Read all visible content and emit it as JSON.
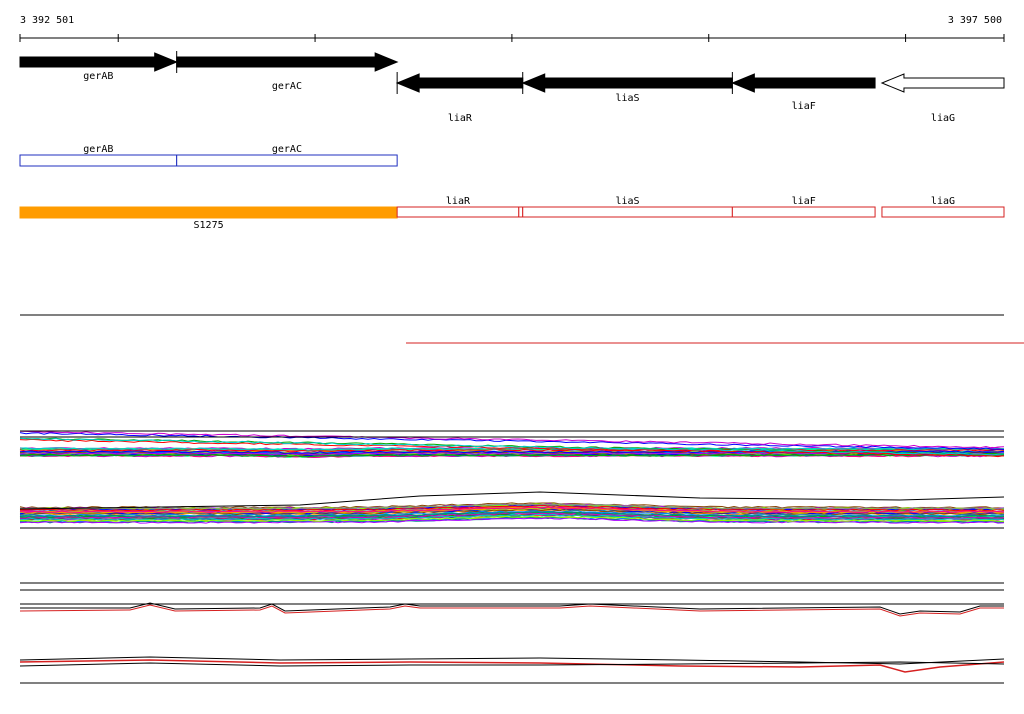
{
  "ruler": {
    "start_label": "3 392 501",
    "end_label": "3 397 500",
    "start": 3392501,
    "end": 3397500
  },
  "colors": {
    "gene": "#000000",
    "gene_outline_only": "#ffffff",
    "blue_track": "#1f2fbf",
    "red_track": "#d62020",
    "highlight": "#ff9c00",
    "line": "#000000"
  },
  "genes": [
    {
      "label": "gerAB",
      "start": 3392501,
      "end": 3393297,
      "strand": "+",
      "filled": true
    },
    {
      "label": "gerAC",
      "start": 3393297,
      "end": 3394417,
      "strand": "+",
      "filled": true
    },
    {
      "label": "liaR",
      "start": 3394417,
      "end": 3395055,
      "strand": "-",
      "filled": true
    },
    {
      "label": "liaS",
      "start": 3395055,
      "end": 3396120,
      "strand": "-",
      "filled": true
    },
    {
      "label": "liaF",
      "start": 3396120,
      "end": 3396845,
      "strand": "-",
      "filled": true
    },
    {
      "label": "liaG",
      "start": 3396880,
      "end": 3397500,
      "strand": "-",
      "filled": false
    }
  ],
  "blue_segments": [
    {
      "label": "gerAB",
      "start": 3392501,
      "end": 3393297
    },
    {
      "label": "gerAC",
      "start": 3393297,
      "end": 3394417
    }
  ],
  "orange_segment": {
    "label": "S1275",
    "start": 3392501,
    "end": 3394417
  },
  "red_segments": [
    {
      "label": "liaR",
      "start": 3394417,
      "end": 3395035
    },
    {
      "label": "",
      "start": 3395035,
      "end": 3395055
    },
    {
      "label": "liaS",
      "start": 3395055,
      "end": 3396120
    },
    {
      "label": "liaF",
      "start": 3396120,
      "end": 3396845
    },
    {
      "label": "liaG",
      "start": 3396880,
      "end": 3397500
    }
  ]
}
